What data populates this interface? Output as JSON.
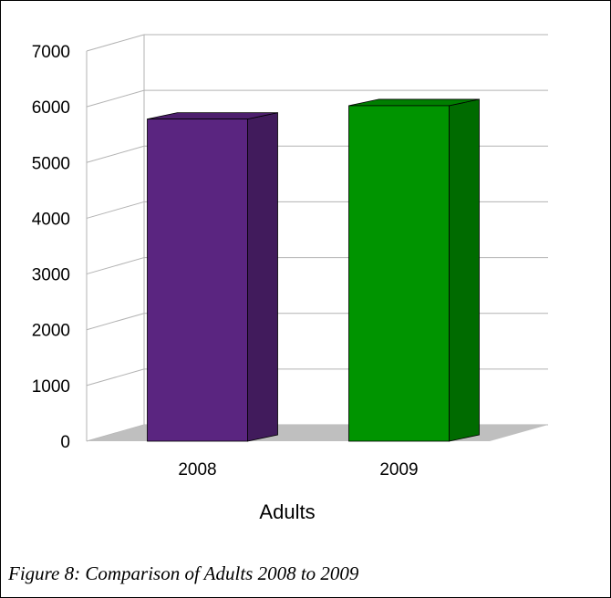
{
  "chart_data": {
    "type": "bar",
    "style": "3d",
    "categories": [
      "2008",
      "2009"
    ],
    "values": [
      5780,
      6020
    ],
    "bar_colors": [
      "#5a2580",
      "#009400"
    ],
    "xlabel": "Adults",
    "ylabel": "",
    "ylim": [
      0,
      7000
    ],
    "yticks": [
      0,
      1000,
      2000,
      3000,
      4000,
      5000,
      6000,
      7000
    ],
    "grid": true,
    "legend": "none"
  },
  "caption": "Figure 8: Comparison of Adults 2008 to 2009",
  "colors": {
    "grid": "#b3b3b3",
    "floor": "#bfbfbf",
    "bar_edge": "#000000"
  }
}
